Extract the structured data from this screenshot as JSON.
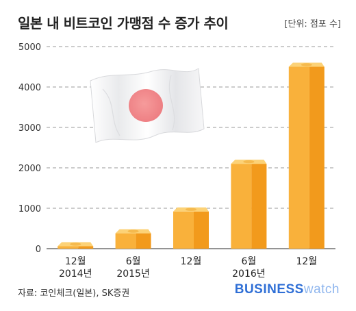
{
  "header": {
    "title": "일본 내 비트코인 가맹점 수 증가 추이",
    "unit": "[단위: 점포 수]"
  },
  "footer": {
    "source": "자료: 코인체크(일본), SK증권",
    "logo_bold": "BUSINESS",
    "logo_light": "watch"
  },
  "colors": {
    "bar_front": "#f9b13b",
    "bar_side": "#f29a1c",
    "bar_top": "#fcd277",
    "grid": "#9a9a9a",
    "flag_red": "#f07a7a"
  },
  "chart_data": {
    "type": "bar",
    "categories": [
      [
        "12월",
        "2014년"
      ],
      [
        "6월",
        "2015년"
      ],
      [
        "12월",
        ""
      ],
      [
        "6월",
        "2016년"
      ],
      [
        "12월",
        ""
      ]
    ],
    "values": [
      60,
      380,
      920,
      2100,
      4500
    ],
    "ylim": [
      0,
      5000
    ],
    "yticks": [
      "0",
      "1000",
      "2000",
      "3000",
      "4000",
      "5000"
    ],
    "grid": true
  }
}
